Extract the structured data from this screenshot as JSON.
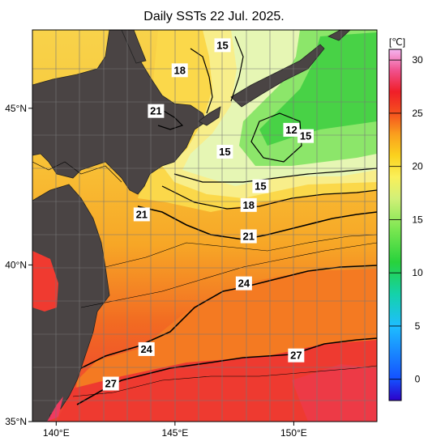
{
  "title": "Daily SSTs 22 Jul. 2025.",
  "map": {
    "lon_range": [
      139,
      153.5
    ],
    "lat_range": [
      35,
      47.5
    ],
    "lon_ticks": [
      {
        "value": 140,
        "label": "140°E"
      },
      {
        "value": 145,
        "label": "145°E"
      },
      {
        "value": 150,
        "label": "150°E"
      }
    ],
    "lat_ticks": [
      {
        "value": 45,
        "label": "45°N"
      },
      {
        "value": 40,
        "label": "40°N"
      },
      {
        "value": 35,
        "label": "35°N"
      }
    ],
    "contour_labels": [
      {
        "text": "15",
        "lon": 147.0,
        "lat": 47.0
      },
      {
        "text": "18",
        "lon": 145.2,
        "lat": 46.2
      },
      {
        "text": "21",
        "lon": 144.2,
        "lat": 44.9
      },
      {
        "text": "12",
        "lon": 149.9,
        "lat": 44.3
      },
      {
        "text": "15",
        "lon": 150.5,
        "lat": 44.1
      },
      {
        "text": "15",
        "lon": 147.1,
        "lat": 43.6
      },
      {
        "text": "15",
        "lon": 148.6,
        "lat": 42.5
      },
      {
        "text": "18",
        "lon": 148.1,
        "lat": 41.9
      },
      {
        "text": "21",
        "lon": 143.6,
        "lat": 41.6
      },
      {
        "text": "21",
        "lon": 148.1,
        "lat": 40.9
      },
      {
        "text": "24",
        "lon": 147.9,
        "lat": 39.4
      },
      {
        "text": "24",
        "lon": 143.8,
        "lat": 37.3
      },
      {
        "text": "27",
        "lon": 150.1,
        "lat": 37.1
      },
      {
        "text": "27",
        "lon": 142.3,
        "lat": 36.2
      }
    ]
  },
  "colorbar": {
    "unit": "[℃]",
    "range": [
      -2,
      31
    ],
    "ticks": [
      "30",
      "25",
      "20",
      "15",
      "10",
      "5",
      "0"
    ],
    "tick_values": [
      30,
      25,
      20,
      15,
      10,
      5,
      0
    ],
    "stops": [
      {
        "v": -2,
        "color": "#2d00c8"
      },
      {
        "v": 0,
        "color": "#1450ff"
      },
      {
        "v": 5,
        "color": "#1ebeff"
      },
      {
        "v": 8,
        "color": "#14d2aa"
      },
      {
        "v": 11,
        "color": "#28d23c"
      },
      {
        "v": 14,
        "color": "#78e650"
      },
      {
        "v": 17,
        "color": "#d2f078"
      },
      {
        "v": 19,
        "color": "#faf05a"
      },
      {
        "v": 21,
        "color": "#fad21e"
      },
      {
        "v": 23,
        "color": "#faa01e"
      },
      {
        "v": 25,
        "color": "#f5501e"
      },
      {
        "v": 27,
        "color": "#f01e28"
      },
      {
        "v": 29,
        "color": "#f0508c"
      },
      {
        "v": 31,
        "color": "#f5b4f0"
      }
    ]
  },
  "colors": {
    "land": "#4a4444"
  }
}
